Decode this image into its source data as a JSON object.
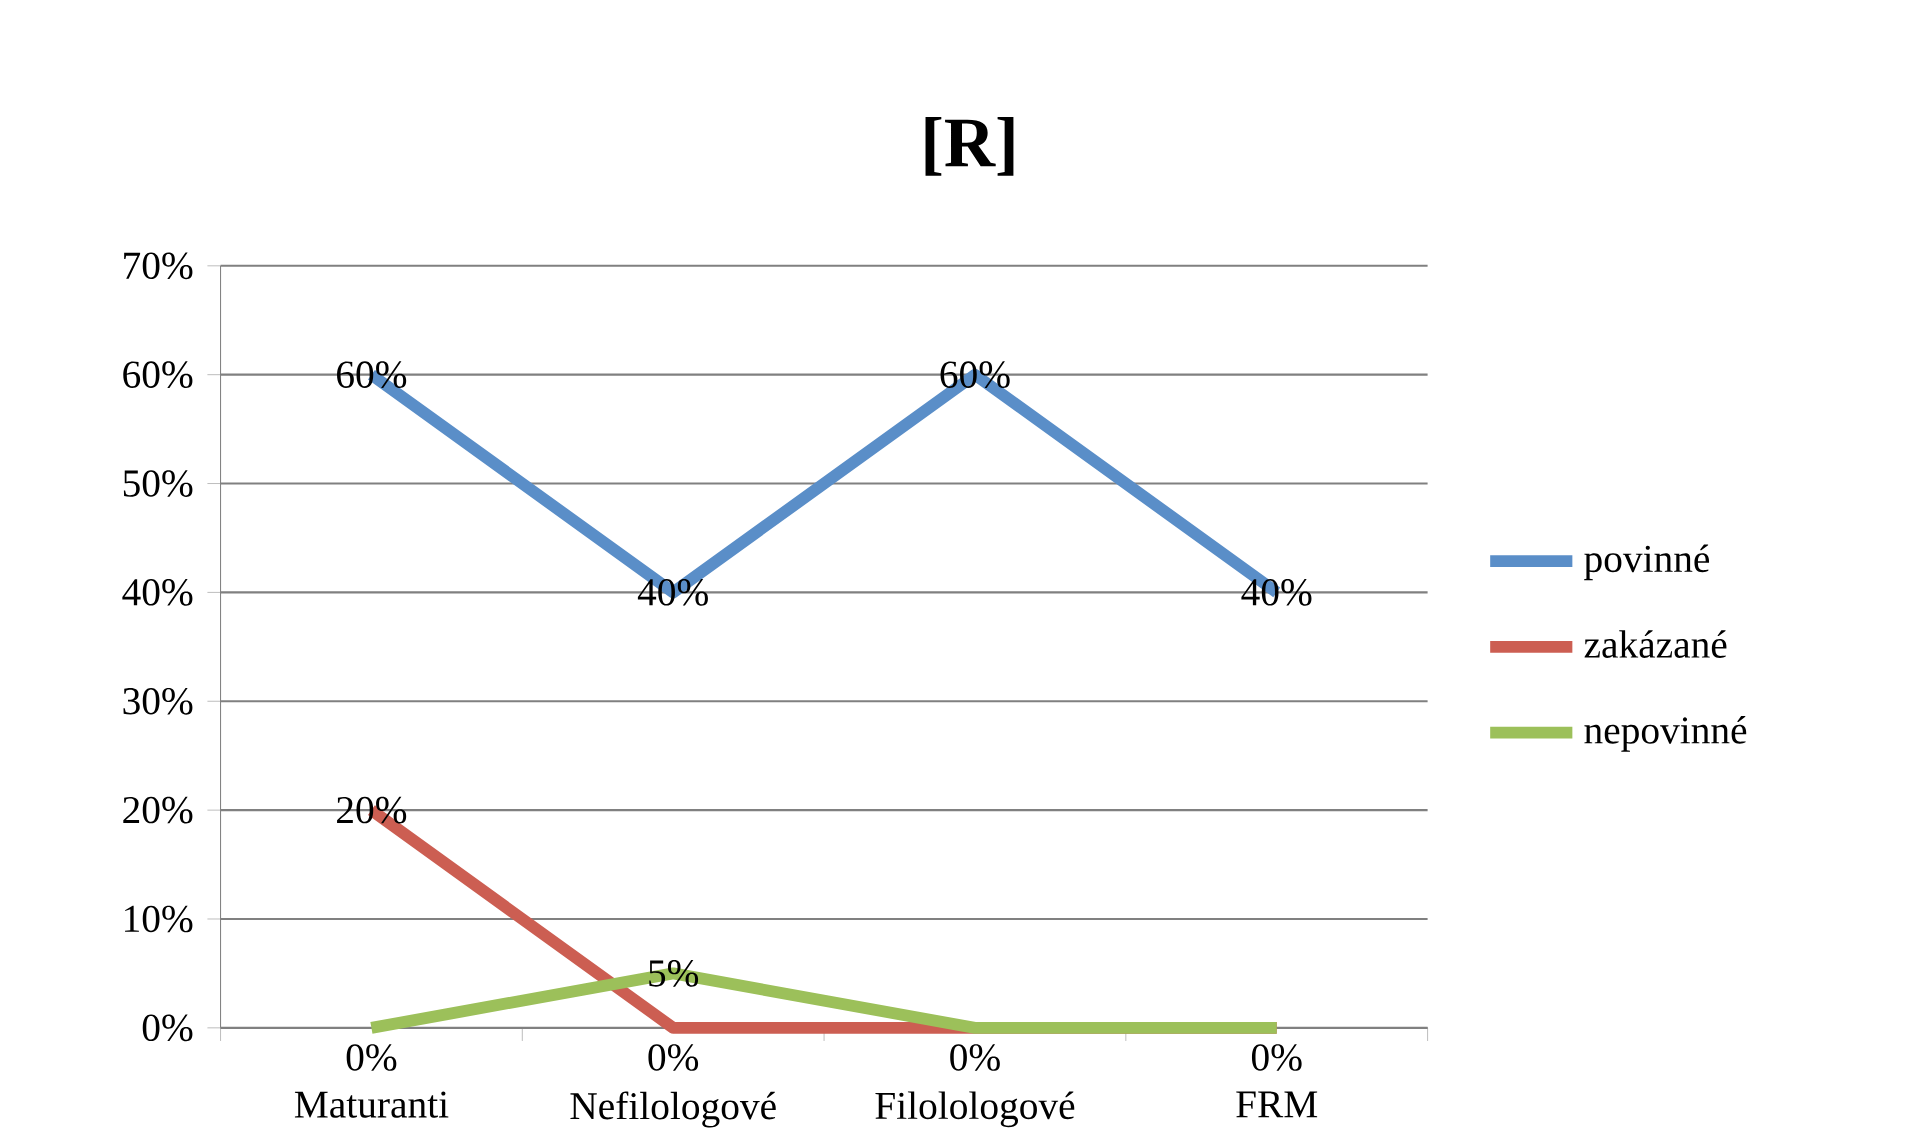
{
  "chart_data": {
    "type": "line",
    "title": "**[R]**",
    "categories": [
      "Maturanti",
      "Nefilologové",
      "Filolologové",
      "FRM"
    ],
    "series": [
      {
        "name": "povinné",
        "color": "#5a8ec8",
        "values": [
          60,
          40,
          60,
          40
        ],
        "value_labels": [
          "60%",
          "40%",
          "60%",
          "40%"
        ]
      },
      {
        "name": "zakázané",
        "color": "#cc5e52",
        "values": [
          20,
          0,
          0,
          0
        ],
        "value_labels": [
          "20%",
          "0%",
          null,
          null
        ]
      },
      {
        "name": "nepovinné",
        "color": "#9cc05a",
        "values": [
          0,
          5,
          0,
          0
        ],
        "value_labels": [
          "0%",
          "5%",
          "0%",
          "0%"
        ]
      }
    ],
    "ylim": [
      0,
      70
    ],
    "yticks": [
      {
        "value": 0,
        "label": "0%"
      },
      {
        "value": 10,
        "label": "10%"
      },
      {
        "value": 20,
        "label": "20%"
      },
      {
        "value": 30,
        "label": "30%"
      },
      {
        "value": 40,
        "label": "40%"
      },
      {
        "value": 50,
        "label": "50%"
      },
      {
        "value": 60,
        "label": "60%"
      },
      {
        "value": 70,
        "label": "70%"
      }
    ],
    "grid": "y",
    "legend": "right",
    "marker": "none",
    "line_style": "solid"
  }
}
